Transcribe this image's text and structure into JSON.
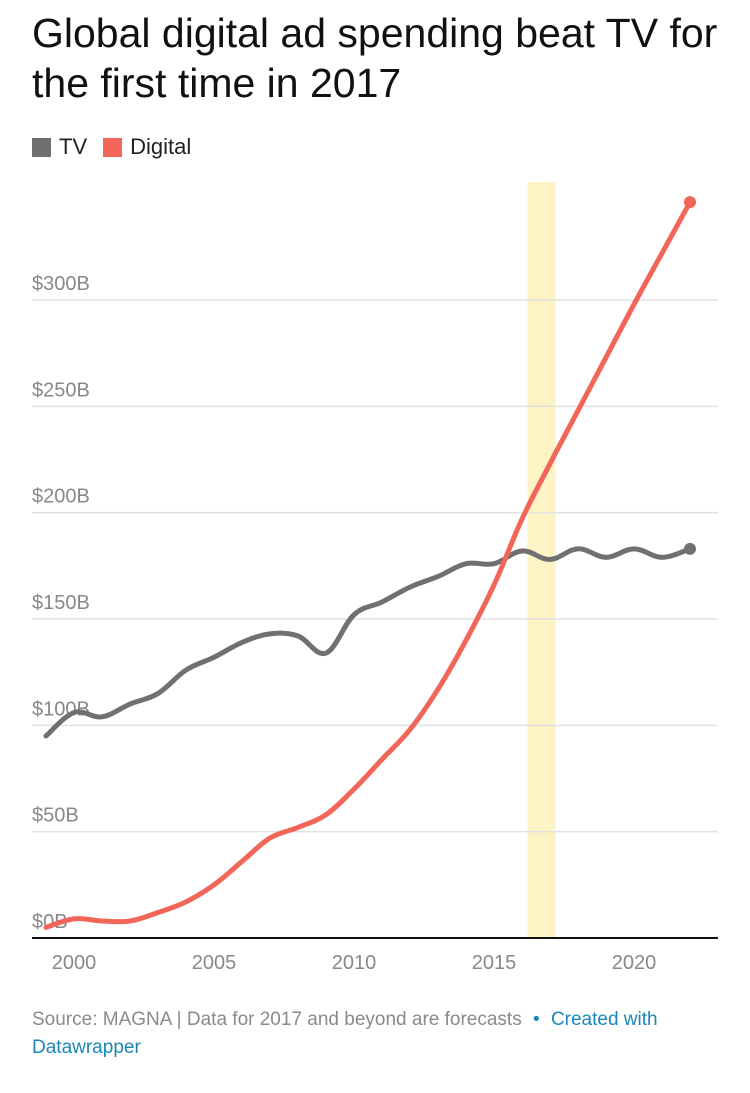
{
  "title": "Global digital ad spending beat TV for the first time in 2017",
  "legend": [
    {
      "label": "TV",
      "color": "#707070"
    },
    {
      "label": "Digital",
      "color": "#f2665a"
    }
  ],
  "footer": {
    "source": "Source: MAGNA | Data for 2017 and beyond are forecasts",
    "separator": "•",
    "credit": "Created with Datawrapper"
  },
  "chart_data": {
    "type": "line",
    "title": "Global digital ad spending beat TV for the first time in 2017",
    "xlabel": "",
    "ylabel": "",
    "xlim": [
      1998.5,
      2023
    ],
    "ylim": [
      0,
      350
    ],
    "x_ticks": [
      2000,
      2005,
      2010,
      2015,
      2020
    ],
    "y_ticks": [
      {
        "value": 0,
        "label": "$0B"
      },
      {
        "value": 50,
        "label": "$50B"
      },
      {
        "value": 100,
        "label": "$100B"
      },
      {
        "value": 150,
        "label": "$150B"
      },
      {
        "value": 200,
        "label": "$200B"
      },
      {
        "value": 250,
        "label": "$250B"
      },
      {
        "value": 300,
        "label": "$300B"
      }
    ],
    "grid": true,
    "legend_position": "top-left",
    "highlight": {
      "from": 2016.2,
      "to": 2017.2,
      "color": "#fdf3c5"
    },
    "x": [
      1999,
      2000,
      2001,
      2002,
      2003,
      2004,
      2005,
      2006,
      2007,
      2008,
      2009,
      2010,
      2011,
      2012,
      2013,
      2014,
      2015,
      2016,
      2017,
      2018,
      2019,
      2020,
      2021,
      2022
    ],
    "series": [
      {
        "name": "TV",
        "color": "#707070",
        "values": [
          95,
          106,
          104,
          110,
          115,
          126,
          132,
          139,
          143,
          142,
          134,
          152,
          158,
          165,
          170,
          176,
          176,
          182,
          178,
          183,
          179,
          183,
          179,
          183
        ]
      },
      {
        "name": "Digital",
        "color": "#f2665a",
        "values": [
          5,
          9,
          8,
          8,
          12,
          17,
          25,
          36,
          47,
          52,
          58,
          70,
          84,
          98,
          117,
          140,
          166,
          197,
          223,
          248,
          273,
          298,
          322,
          346
        ]
      }
    ]
  }
}
